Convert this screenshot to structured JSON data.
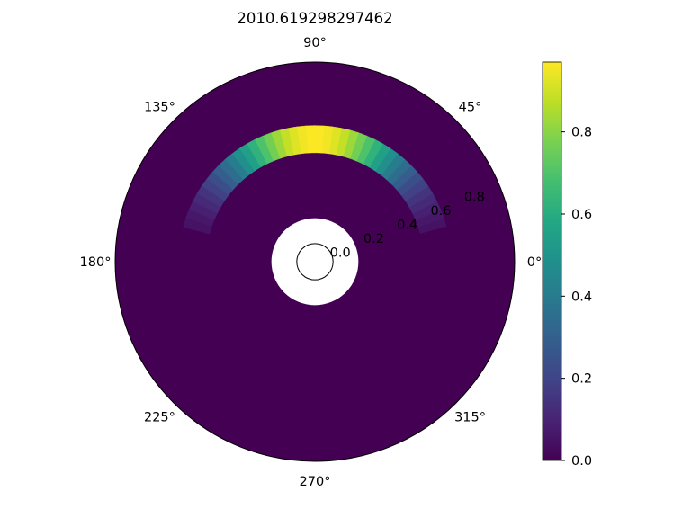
{
  "chart_data": {
    "type": "heatmap",
    "projection": "polar",
    "title": "2010.619298297462",
    "theta_tick_labels": [
      "0°",
      "45°",
      "90°",
      "135°",
      "180°",
      "225°",
      "270°",
      "315°"
    ],
    "theta_tick_degrees": [
      0,
      45,
      90,
      135,
      180,
      225,
      270,
      315
    ],
    "r_tick_labels": [
      "0.0",
      "0.2",
      "0.4",
      "0.6",
      "0.8"
    ],
    "r_tick_values": [
      0.0,
      0.2,
      0.4,
      0.6,
      0.8
    ],
    "r_label_angle_deg": 22.5,
    "rlim": [
      -0.1,
      1.0
    ],
    "masked_inner_radius": 0.1,
    "grid": false,
    "background_value": 0.0,
    "band": {
      "r_inner": 0.5,
      "r_outer": 0.65,
      "theta_start_deg": 15,
      "theta_end_deg": 165,
      "theta_step_deg": 3.75,
      "peak_theta_deg": 90,
      "peak_value": 0.97,
      "profile": "gaussian",
      "sigma_deg": 30
    },
    "colorbar": {
      "cmap": "viridis",
      "vmin": 0.0,
      "vmax": 0.97,
      "tick_labels": [
        "0.0",
        "0.2",
        "0.4",
        "0.6",
        "0.8"
      ],
      "tick_values": [
        0.0,
        0.2,
        0.4,
        0.6,
        0.8
      ]
    }
  }
}
